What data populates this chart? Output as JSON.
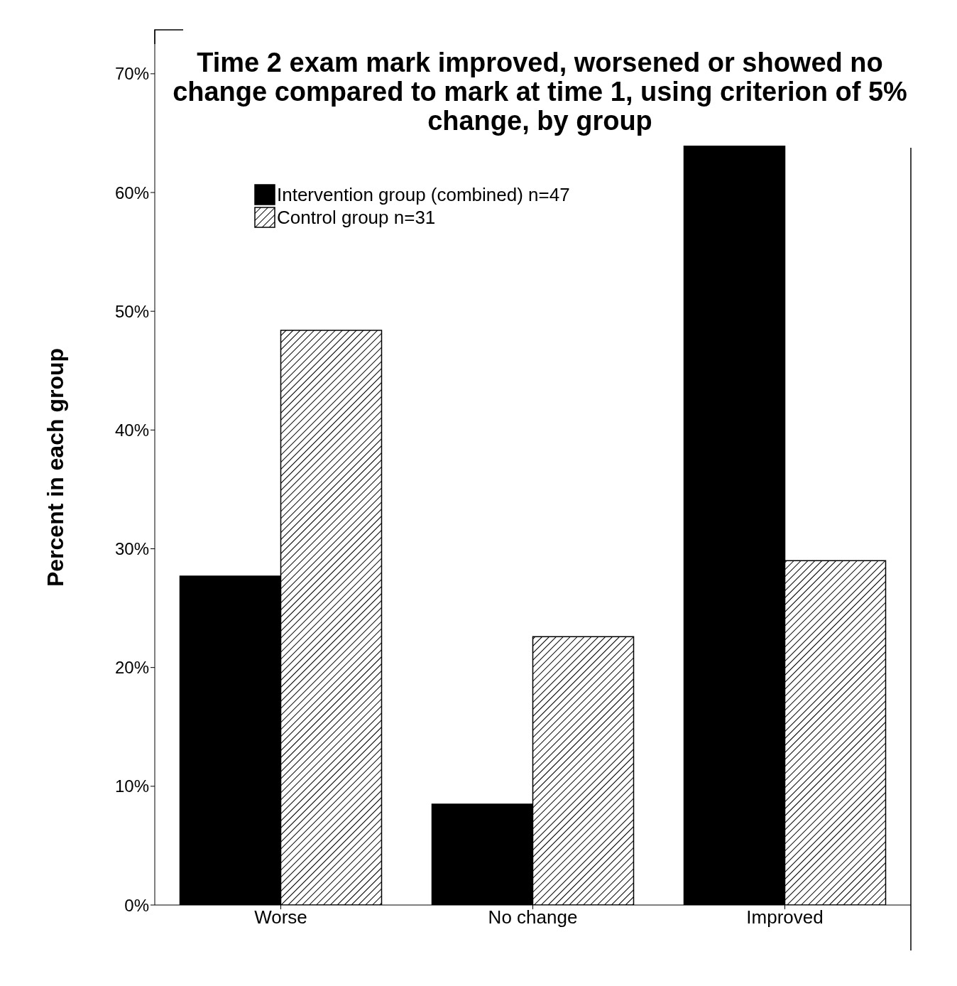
{
  "chart_data": {
    "type": "bar",
    "title": "Time 2 exam mark improved, worsened or showed no change compared to mark at time 1, using criterion of 5% change, by group",
    "ylabel": "Percent in each group",
    "categories": [
      "Worse",
      "No change",
      "Improved"
    ],
    "series": [
      {
        "name": "Intervention group (combined) n=47",
        "color": "#000000",
        "values": [
          27.7,
          8.5,
          63.9
        ]
      },
      {
        "name": "Control group n=31",
        "color": "#000000",
        "values": [
          48.4,
          22.6,
          29.0
        ]
      }
    ],
    "ylim": [
      0,
      73.7
    ],
    "yticks": [
      {
        "value": 0,
        "label": "0%"
      },
      {
        "value": 10,
        "label": "10%"
      },
      {
        "value": 20,
        "label": "20%"
      },
      {
        "value": 30,
        "label": "30%"
      },
      {
        "value": 40,
        "label": "40%"
      },
      {
        "value": 50,
        "label": "50%"
      },
      {
        "value": 60,
        "label": "60%"
      },
      {
        "value": 70,
        "label": "70%"
      }
    ],
    "grid": false,
    "legend": "top left"
  }
}
